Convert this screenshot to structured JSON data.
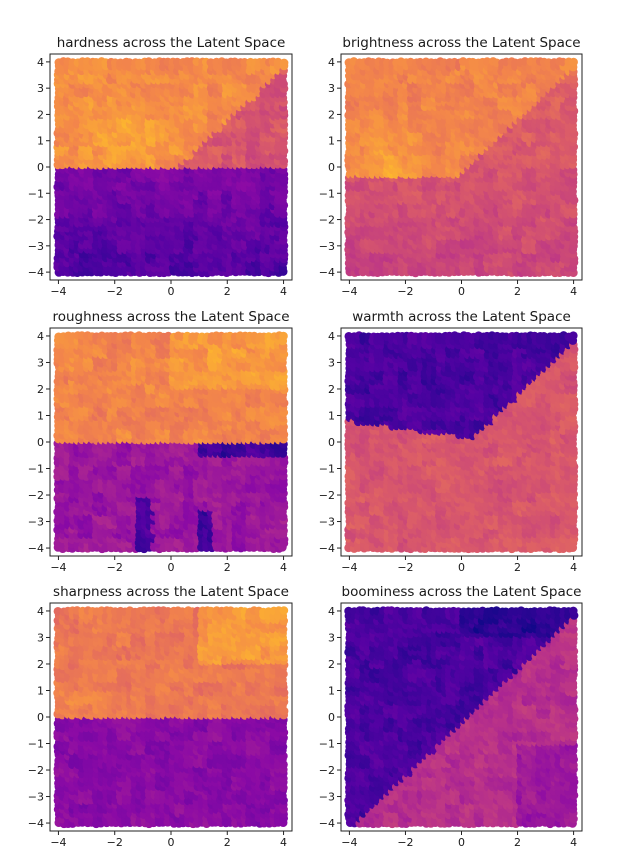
{
  "chart_data": [
    {
      "type": "heatmap",
      "title": "hardness across the Latent Space",
      "xlabel": "",
      "ylabel": "",
      "xlim": [
        -4.3,
        4.3
      ],
      "ylim": [
        -4.3,
        4.3
      ],
      "xticks": [
        "−4",
        "−2",
        "0",
        "2",
        "4"
      ],
      "yticks": [
        "−4",
        "−3",
        "−2",
        "−1",
        "0",
        "1",
        "2",
        "3",
        "4"
      ],
      "grid": false,
      "colormap": "plasma",
      "pattern": "bright upper-left wedge above the diagonal, orange upper region, dark purple lower half"
    },
    {
      "type": "heatmap",
      "title": "brightness across the Latent Space",
      "xlabel": "",
      "ylabel": "",
      "xlim": [
        -4.3,
        4.3
      ],
      "ylim": [
        -4.3,
        4.3
      ],
      "xticks": [
        "−4",
        "−2",
        "0",
        "2",
        "4"
      ],
      "yticks": [
        "−4",
        "−3",
        "−2",
        "−1",
        "0",
        "1",
        "2",
        "3",
        "4"
      ],
      "grid": false,
      "colormap": "plasma",
      "pattern": "bright wedge upper-left and top, moderate orange/pink lower half"
    },
    {
      "type": "heatmap",
      "title": "roughness across the Latent Space",
      "xlabel": "",
      "ylabel": "",
      "xlim": [
        -4.3,
        4.3
      ],
      "ylim": [
        -4.3,
        4.3
      ],
      "xticks": [
        "−4",
        "−2",
        "0",
        "2",
        "4"
      ],
      "yticks": [
        "−4",
        "−3",
        "−2",
        "−1",
        "0",
        "1",
        "2",
        "3",
        "4"
      ],
      "grid": false,
      "colormap": "plasma",
      "pattern": "orange upper half, purple lower half with dark navy spots near y=0 and bottom x=-1 and x=1"
    },
    {
      "type": "heatmap",
      "title": "warmth across the Latent Space",
      "xlabel": "",
      "ylabel": "",
      "xlim": [
        -4.3,
        4.3
      ],
      "ylim": [
        -4.3,
        4.3
      ],
      "xticks": [
        "−4",
        "−2",
        "0",
        "2",
        "4"
      ],
      "yticks": [
        "−4",
        "−3",
        "−2",
        "−1",
        "0",
        "1",
        "2",
        "3",
        "4"
      ],
      "grid": false,
      "colormap": "plasma",
      "pattern": "dark purple upper-left triangle, orange/pink lower-right"
    },
    {
      "type": "heatmap",
      "title": "sharpness across the Latent Space",
      "xlabel": "",
      "ylabel": "",
      "xlim": [
        -4.3,
        4.3
      ],
      "ylim": [
        -4.3,
        4.3
      ],
      "xticks": [
        "−4",
        "−2",
        "0",
        "2",
        "4"
      ],
      "yticks": [
        "−4",
        "−3",
        "−2",
        "−1",
        "0",
        "1",
        "2",
        "3",
        "4"
      ],
      "grid": false,
      "colormap": "plasma",
      "pattern": "orange upper region with bright upper-right, purple lower half"
    },
    {
      "type": "heatmap",
      "title": "boominess across the Latent Space",
      "xlabel": "",
      "ylabel": "",
      "xlim": [
        -4.3,
        4.3
      ],
      "ylim": [
        -4.3,
        4.3
      ],
      "xticks": [
        "−4",
        "−2",
        "0",
        "2",
        "4"
      ],
      "yticks": [
        "−4",
        "−3",
        "−2",
        "−1",
        "0",
        "1",
        "2",
        "3",
        "4"
      ],
      "grid": false,
      "colormap": "plasma",
      "pattern": "dark navy upper-left triangle, purple to pink lower-right"
    }
  ]
}
